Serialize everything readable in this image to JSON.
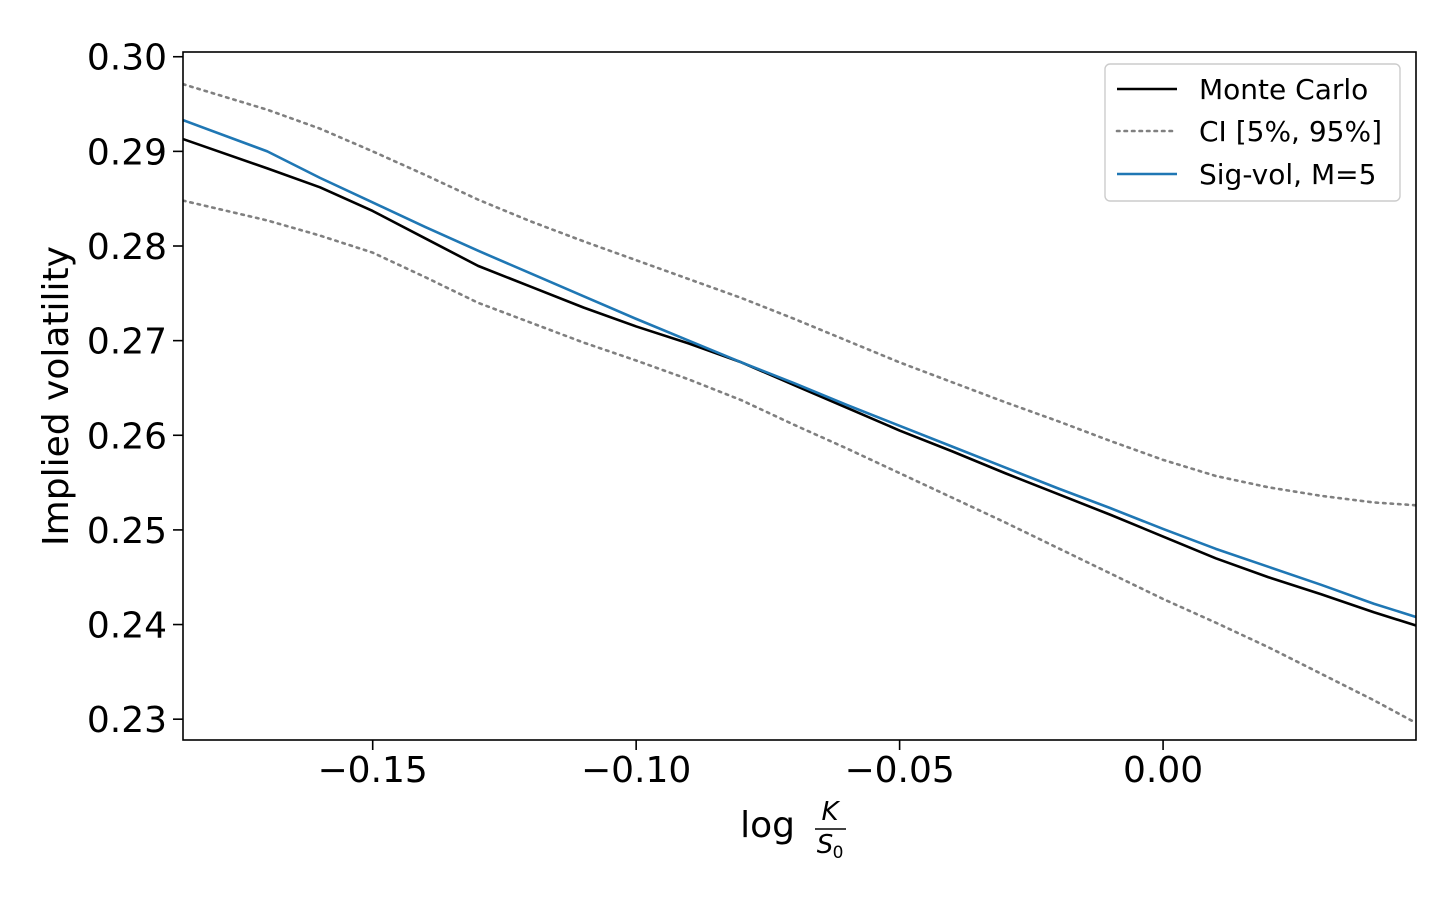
{
  "chart_data": {
    "type": "line",
    "title": "",
    "xlabel": {
      "prefix": "log",
      "numerator": "K",
      "denominator": "S",
      "denominator_sub": "0"
    },
    "ylabel": "Implied volatility",
    "xlim": [
      -0.186,
      0.048
    ],
    "ylim": [
      0.2278,
      0.3005
    ],
    "xticks": [
      -0.15,
      -0.1,
      -0.05,
      0.0
    ],
    "xtick_labels": [
      "−0.15",
      "−0.10",
      "−0.05",
      "0.00"
    ],
    "yticks": [
      0.23,
      0.24,
      0.25,
      0.26,
      0.27,
      0.28,
      0.29,
      0.3
    ],
    "ytick_labels": [
      "0.23",
      "0.24",
      "0.25",
      "0.26",
      "0.27",
      "0.28",
      "0.29",
      "0.30"
    ],
    "grid": false,
    "legend_position": "top-right",
    "series": [
      {
        "name": "Monte Carlo",
        "color": "#000000",
        "style": "solid",
        "x": [
          -0.186,
          -0.17,
          -0.16,
          -0.15,
          -0.14,
          -0.13,
          -0.12,
          -0.11,
          -0.1,
          -0.09,
          -0.08,
          -0.07,
          -0.06,
          -0.05,
          -0.04,
          -0.03,
          -0.02,
          -0.01,
          0.0,
          0.01,
          0.02,
          0.03,
          0.04,
          0.048
        ],
        "y": [
          0.2913,
          0.2882,
          0.2862,
          0.2837,
          0.2808,
          0.2779,
          0.2757,
          0.2735,
          0.2715,
          0.2697,
          0.2677,
          0.2653,
          0.2629,
          0.2605,
          0.2583,
          0.256,
          0.2538,
          0.2516,
          0.2493,
          0.247,
          0.245,
          0.2432,
          0.2413,
          0.2399
        ]
      },
      {
        "name": "CI [5%, 95%]",
        "color": "#808080",
        "style": "dotted",
        "x": [
          -0.186,
          -0.17,
          -0.16,
          -0.15,
          -0.14,
          -0.13,
          -0.12,
          -0.11,
          -0.1,
          -0.09,
          -0.08,
          -0.07,
          -0.06,
          -0.05,
          -0.04,
          -0.03,
          -0.02,
          -0.01,
          0.0,
          0.01,
          0.02,
          0.03,
          0.04,
          0.048
        ],
        "y": [
          0.2971,
          0.2944,
          0.2924,
          0.29,
          0.2875,
          0.2849,
          0.2826,
          0.2805,
          0.2785,
          0.2765,
          0.2745,
          0.2723,
          0.27,
          0.2677,
          0.2656,
          0.2635,
          0.2615,
          0.2594,
          0.2574,
          0.2557,
          0.2545,
          0.2536,
          0.2529,
          0.2526
        ]
      },
      {
        "name": "",
        "color": "#808080",
        "style": "dotted",
        "x": [
          -0.186,
          -0.17,
          -0.16,
          -0.15,
          -0.14,
          -0.13,
          -0.12,
          -0.11,
          -0.1,
          -0.09,
          -0.08,
          -0.07,
          -0.06,
          -0.05,
          -0.04,
          -0.03,
          -0.02,
          -0.01,
          0.0,
          0.01,
          0.02,
          0.03,
          0.04,
          0.048
        ],
        "y": [
          0.2848,
          0.2827,
          0.2811,
          0.2793,
          0.2767,
          0.274,
          0.2719,
          0.2698,
          0.2679,
          0.2659,
          0.2637,
          0.2611,
          0.2586,
          0.256,
          0.2534,
          0.2508,
          0.2481,
          0.2454,
          0.2427,
          0.2402,
          0.2376,
          0.2348,
          0.232,
          0.2296
        ]
      },
      {
        "name": "Sig-vol, M=5",
        "color": "#1f77b4",
        "style": "solid",
        "x": [
          -0.186,
          -0.17,
          -0.16,
          -0.15,
          -0.14,
          -0.13,
          -0.12,
          -0.11,
          -0.1,
          -0.09,
          -0.08,
          -0.07,
          -0.06,
          -0.05,
          -0.04,
          -0.03,
          -0.02,
          -0.01,
          0.0,
          0.01,
          0.02,
          0.03,
          0.04,
          0.048
        ],
        "y": [
          0.2933,
          0.29,
          0.2872,
          0.2846,
          0.282,
          0.2795,
          0.2771,
          0.2747,
          0.2723,
          0.27,
          0.2677,
          0.2655,
          0.2632,
          0.261,
          0.2588,
          0.2566,
          0.2544,
          0.2523,
          0.2501,
          0.248,
          0.2461,
          0.2442,
          0.2422,
          0.2408
        ]
      }
    ]
  }
}
